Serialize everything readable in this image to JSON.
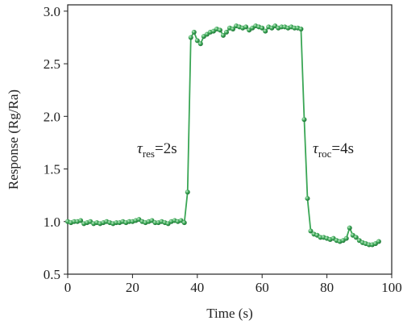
{
  "chart_data": {
    "type": "line",
    "color": "#3aa655",
    "xlabel": "Time (s)",
    "ylabel": "Response (Rg/Ra)",
    "xlim": [
      0,
      100
    ],
    "xticks": [
      0,
      20,
      40,
      60,
      80,
      100
    ],
    "ylim": [
      0.5,
      3.06
    ],
    "yticks": [
      0.5,
      {
        "value": 1,
        "label": "1.0"
      },
      1.5,
      {
        "value": 2,
        "label": "2.0"
      },
      2.5,
      {
        "value": 3,
        "label": "3.0"
      }
    ],
    "annotations": [
      {
        "symbol": "τ",
        "subscript": "res",
        "text": "=2s"
      },
      {
        "symbol": "τ",
        "subscript": "roc",
        "text": "=4s"
      }
    ],
    "series": [
      {
        "x": [
          0,
          1,
          2,
          3,
          4,
          5,
          6,
          7,
          8,
          9,
          10,
          11,
          12,
          13,
          14,
          15,
          16,
          17,
          18,
          19,
          20,
          21,
          22,
          23,
          24,
          25,
          26,
          27,
          28,
          29,
          30,
          31,
          32,
          33,
          34,
          35,
          36,
          37,
          38,
          39,
          40,
          41,
          42,
          43,
          44,
          45,
          46,
          47,
          48,
          49,
          50,
          51,
          52,
          53,
          54,
          55,
          56,
          57,
          58,
          59,
          60,
          61,
          62,
          63,
          64,
          65,
          66,
          67,
          68,
          69,
          70,
          71,
          72,
          73,
          74,
          75,
          76,
          77,
          78,
          79,
          80,
          81,
          82,
          83,
          84,
          85,
          86,
          87,
          88,
          89,
          90,
          91,
          92,
          93,
          94,
          95,
          96
        ],
        "values": [
          1.0,
          0.99,
          1.0,
          1.0,
          1.01,
          0.98,
          0.99,
          1.0,
          0.98,
          0.99,
          0.98,
          0.99,
          1.0,
          0.99,
          0.98,
          0.99,
          0.99,
          1.0,
          0.99,
          1.0,
          1.0,
          1.01,
          1.02,
          1.0,
          0.99,
          1.0,
          1.01,
          0.99,
          0.99,
          1.0,
          0.99,
          0.98,
          1.0,
          1.01,
          1.0,
          1.01,
          0.99,
          1.28,
          2.75,
          2.8,
          2.72,
          2.69,
          2.76,
          2.78,
          2.8,
          2.81,
          2.83,
          2.82,
          2.77,
          2.8,
          2.84,
          2.83,
          2.86,
          2.85,
          2.84,
          2.85,
          2.82,
          2.84,
          2.86,
          2.85,
          2.84,
          2.81,
          2.85,
          2.84,
          2.86,
          2.84,
          2.85,
          2.85,
          2.84,
          2.85,
          2.84,
          2.84,
          2.83,
          1.97,
          1.22,
          0.91,
          0.88,
          0.87,
          0.85,
          0.85,
          0.84,
          0.83,
          0.84,
          0.82,
          0.81,
          0.82,
          0.84,
          0.94,
          0.87,
          0.85,
          0.82,
          0.8,
          0.79,
          0.78,
          0.78,
          0.79,
          0.81
        ]
      }
    ]
  }
}
